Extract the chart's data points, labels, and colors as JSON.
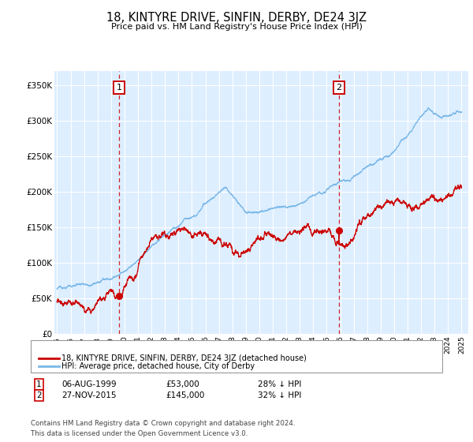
{
  "title": "18, KINTYRE DRIVE, SINFIN, DERBY, DE24 3JZ",
  "subtitle": "Price paid vs. HM Land Registry's House Price Index (HPI)",
  "hpi_label": "HPI: Average price, detached house, City of Derby",
  "property_label": "18, KINTYRE DRIVE, SINFIN, DERBY, DE24 3JZ (detached house)",
  "hpi_color": "#7ab8e8",
  "property_color": "#cc0000",
  "dashed_line_color": "#cc0000",
  "plot_bg": "#ddeeff",
  "grid_color": "#ffffff",
  "annotation1": {
    "label": "1",
    "date": "06-AUG-1999",
    "price": "£53,000",
    "note": "28% ↓ HPI",
    "x_year": 1999.6,
    "y_val": 53000
  },
  "annotation2": {
    "label": "2",
    "date": "27-NOV-2015",
    "price": "£145,000",
    "note": "32% ↓ HPI",
    "x_year": 2015.9,
    "y_val": 145000
  },
  "ylim": [
    0,
    370000
  ],
  "xlim_start": 1994.8,
  "xlim_end": 2025.5,
  "footer": "Contains HM Land Registry data © Crown copyright and database right 2024.\nThis data is licensed under the Open Government Licence v3.0.",
  "yticks": [
    0,
    50000,
    100000,
    150000,
    200000,
    250000,
    300000,
    350000
  ],
  "ytick_labels": [
    "£0",
    "£50K",
    "£100K",
    "£150K",
    "£200K",
    "£250K",
    "£300K",
    "£350K"
  ],
  "xtick_years": [
    1995,
    1996,
    1997,
    1998,
    1999,
    2000,
    2001,
    2002,
    2003,
    2004,
    2005,
    2006,
    2007,
    2008,
    2009,
    2010,
    2011,
    2012,
    2013,
    2014,
    2015,
    2016,
    2017,
    2018,
    2019,
    2020,
    2021,
    2022,
    2023,
    2024,
    2025
  ]
}
